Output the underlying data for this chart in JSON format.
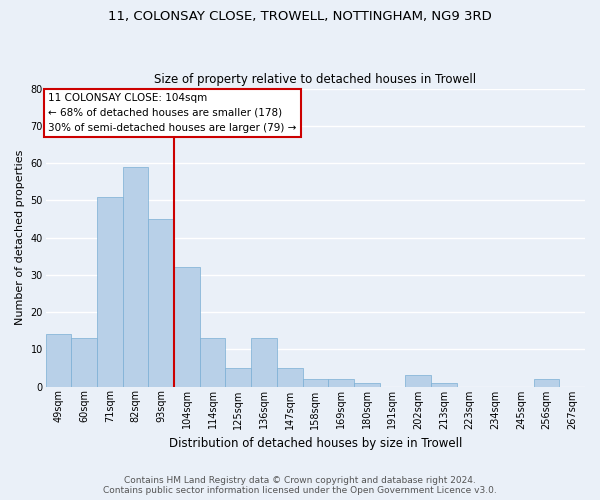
{
  "title1": "11, COLONSAY CLOSE, TROWELL, NOTTINGHAM, NG9 3RD",
  "title2": "Size of property relative to detached houses in Trowell",
  "xlabel": "Distribution of detached houses by size in Trowell",
  "ylabel": "Number of detached properties",
  "categories": [
    "49sqm",
    "60sqm",
    "71sqm",
    "82sqm",
    "93sqm",
    "104sqm",
    "114sqm",
    "125sqm",
    "136sqm",
    "147sqm",
    "158sqm",
    "169sqm",
    "180sqm",
    "191sqm",
    "202sqm",
    "213sqm",
    "223sqm",
    "234sqm",
    "245sqm",
    "256sqm",
    "267sqm"
  ],
  "values": [
    14,
    13,
    51,
    59,
    45,
    32,
    13,
    5,
    13,
    5,
    2,
    2,
    1,
    0,
    3,
    1,
    0,
    0,
    0,
    2,
    0
  ],
  "bar_color": "#b8d0e8",
  "bar_edge_color": "#7aafd4",
  "annotation_line1": "11 COLONSAY CLOSE: 104sqm",
  "annotation_line2": "← 68% of detached houses are smaller (178)",
  "annotation_line3": "30% of semi-detached houses are larger (79) →",
  "annotation_box_color": "#ffffff",
  "annotation_box_edge": "#cc0000",
  "vline_color": "#cc0000",
  "footer1": "Contains HM Land Registry data © Crown copyright and database right 2024.",
  "footer2": "Contains public sector information licensed under the Open Government Licence v3.0.",
  "ylim": [
    0,
    80
  ],
  "yticks": [
    0,
    10,
    20,
    30,
    40,
    50,
    60,
    70,
    80
  ],
  "bg_color": "#eaf0f8",
  "title1_fontsize": 9.5,
  "title2_fontsize": 8.5,
  "xlabel_fontsize": 8.5,
  "ylabel_fontsize": 8,
  "tick_fontsize": 7,
  "footer_fontsize": 6.5,
  "annot_fontsize": 7.5
}
